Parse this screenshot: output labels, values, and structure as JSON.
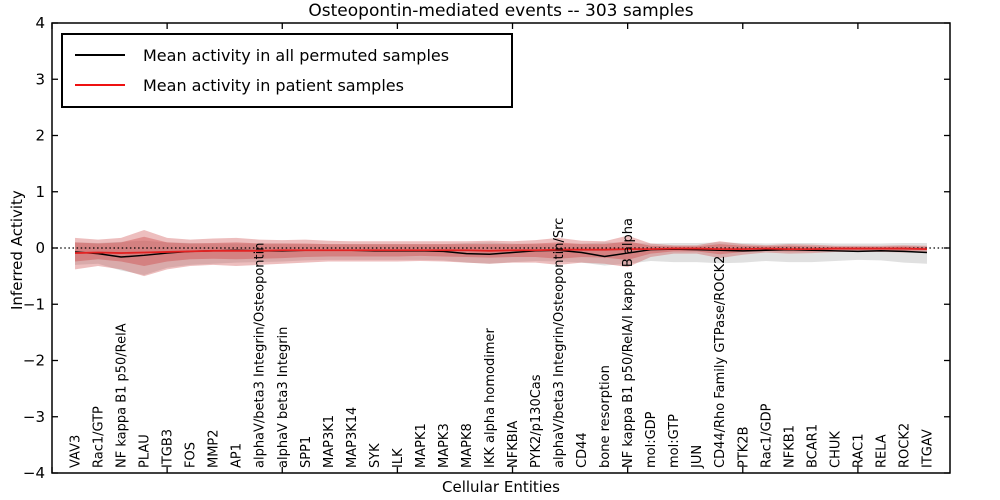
{
  "figure": {
    "title": "Osteopontin-mediated events -- 303 samples",
    "xlabel": "Cellular Entities",
    "ylabel": "Inferred Activity"
  },
  "legend": {
    "entries": [
      {
        "label": "Mean activity in all permuted samples",
        "color": "#000000"
      },
      {
        "label": "Mean activity in patient samples",
        "color": "#ee1111"
      }
    ]
  },
  "colors": {
    "permuted_line": "#000000",
    "patient_line": "#e22222",
    "patient_band": "#cc4444",
    "permuted_band": "#999999",
    "zero_line": "#000000",
    "axis": "#000000"
  },
  "chart_data": {
    "type": "line",
    "title": "Osteopontin-mediated events -- 303 samples",
    "xlabel": "Cellular Entities",
    "ylabel": "Inferred Activity",
    "ylim": [
      -4,
      4
    ],
    "xlim": [
      0,
      39
    ],
    "grid": false,
    "legend_position": "upper left",
    "yticks": [
      "−4",
      "−3",
      "−2",
      "−1",
      "0",
      "1",
      "2",
      "3",
      "4"
    ],
    "ytick_values": [
      -4,
      -3,
      -2,
      -1,
      0,
      1,
      2,
      3,
      4
    ],
    "xtick_values": [
      0,
      5,
      10,
      15,
      20,
      25,
      30,
      35
    ],
    "zero_line": {
      "style": "dotted",
      "value": 0
    },
    "categories": [
      "VAV3",
      "Rac1/GTP",
      "NF kappa B1 p50/RelA",
      "PLAU",
      "ITGB3",
      "FOS",
      "MMP2",
      "AP1",
      "alphaV/beta3 Integrin/Osteopontin",
      "alphaV beta3 Integrin",
      "SPP1",
      "MAP3K1",
      "MAP3K14",
      "SYK",
      "ILK",
      "MAPK1",
      "MAPK3",
      "MAPK8",
      "IKK alpha homodimer",
      "NFKBIA",
      "PYK2/p130Cas",
      "alphaV/beta3 Integrin/Osteopontin/Src",
      "CD44",
      "bone resorption",
      "NF kappa B1 p50/RelA/I kappa B alpha",
      "mol:GDP",
      "mol:GTP",
      "JUN",
      "CD44/Rho Family GTPase/ROCK2",
      "PTK2B",
      "Rac1/GDP",
      "NFKB1",
      "BCAR1",
      "CHUK",
      "RAC1",
      "RELA",
      "ROCK2",
      "ITGAV"
    ],
    "series": [
      {
        "name": "Mean activity in all permuted samples",
        "color": "#000000",
        "width": 1.5,
        "values": [
          -0.07,
          -0.1,
          -0.16,
          -0.13,
          -0.09,
          -0.06,
          -0.05,
          -0.04,
          -0.05,
          -0.05,
          -0.04,
          -0.04,
          -0.04,
          -0.05,
          -0.05,
          -0.05,
          -0.06,
          -0.1,
          -0.11,
          -0.08,
          -0.05,
          -0.04,
          -0.08,
          -0.15,
          -0.09,
          -0.03,
          -0.02,
          -0.03,
          -0.04,
          -0.05,
          -0.04,
          -0.03,
          -0.04,
          -0.05,
          -0.06,
          -0.05,
          -0.06,
          -0.08
        ]
      },
      {
        "name": "Mean activity in patient samples",
        "color": "#e22222",
        "width": 1.8,
        "values": [
          -0.09,
          -0.08,
          -0.09,
          -0.08,
          -0.07,
          -0.06,
          -0.05,
          -0.05,
          -0.05,
          -0.04,
          -0.04,
          -0.04,
          -0.04,
          -0.04,
          -0.04,
          -0.04,
          -0.04,
          -0.04,
          -0.05,
          -0.04,
          -0.04,
          -0.03,
          -0.03,
          -0.03,
          -0.02,
          -0.02,
          -0.01,
          -0.01,
          -0.02,
          -0.02,
          -0.01,
          -0.02,
          -0.02,
          -0.01,
          -0.01,
          -0.01,
          -0.01,
          -0.02
        ]
      }
    ],
    "bands": [
      {
        "name": "permuted-sample-range",
        "color": "#999999",
        "opacity": 0.3,
        "upper": [
          0.1,
          0.09,
          0.11,
          0.13,
          0.1,
          0.09,
          0.08,
          0.08,
          0.08,
          0.08,
          0.07,
          0.07,
          0.07,
          0.07,
          0.07,
          0.07,
          0.07,
          0.09,
          0.1,
          0.08,
          0.07,
          0.07,
          0.08,
          0.1,
          0.09,
          0.08,
          0.09,
          0.09,
          0.1,
          0.09,
          0.08,
          0.09,
          0.09,
          0.08,
          0.08,
          0.08,
          0.09,
          0.09
        ],
        "lower": [
          -0.3,
          -0.28,
          -0.4,
          -0.48,
          -0.35,
          -0.3,
          -0.28,
          -0.26,
          -0.25,
          -0.24,
          -0.22,
          -0.21,
          -0.21,
          -0.21,
          -0.21,
          -0.21,
          -0.22,
          -0.26,
          -0.28,
          -0.25,
          -0.23,
          -0.24,
          -0.26,
          -0.31,
          -0.28,
          -0.23,
          -0.25,
          -0.25,
          -0.27,
          -0.26,
          -0.23,
          -0.25,
          -0.25,
          -0.23,
          -0.21,
          -0.22,
          -0.26,
          -0.28
        ]
      },
      {
        "name": "patient-sample-range-outer",
        "color": "#cc4444",
        "opacity": 0.35,
        "upper": [
          0.18,
          0.15,
          0.18,
          0.32,
          0.18,
          0.15,
          0.17,
          0.18,
          0.15,
          0.14,
          0.15,
          0.13,
          0.12,
          0.12,
          0.12,
          0.12,
          0.12,
          0.12,
          0.13,
          0.12,
          0.14,
          0.18,
          0.13,
          0.12,
          0.22,
          0.08,
          0.05,
          0.05,
          0.12,
          0.07,
          0.05,
          0.07,
          0.06,
          0.04,
          0.04,
          0.04,
          0.05,
          0.04
        ],
        "lower": [
          -0.38,
          -0.32,
          -0.38,
          -0.5,
          -0.38,
          -0.32,
          -0.3,
          -0.32,
          -0.3,
          -0.28,
          -0.26,
          -0.24,
          -0.24,
          -0.24,
          -0.24,
          -0.23,
          -0.24,
          -0.26,
          -0.28,
          -0.26,
          -0.26,
          -0.3,
          -0.26,
          -0.28,
          -0.34,
          -0.16,
          -0.1,
          -0.1,
          -0.18,
          -0.12,
          -0.08,
          -0.1,
          -0.09,
          -0.07,
          -0.07,
          -0.07,
          -0.08,
          -0.07
        ]
      },
      {
        "name": "patient-sample-range-inner",
        "color": "#cc4444",
        "opacity": 0.4,
        "upper": [
          0.1,
          0.08,
          0.1,
          0.2,
          0.1,
          0.08,
          0.09,
          0.1,
          0.08,
          0.08,
          0.08,
          0.07,
          0.07,
          0.07,
          0.07,
          0.07,
          0.07,
          0.07,
          0.07,
          0.07,
          0.08,
          0.1,
          0.07,
          0.07,
          0.12,
          0.04,
          0.03,
          0.03,
          0.07,
          0.04,
          0.03,
          0.04,
          0.03,
          0.02,
          0.02,
          0.02,
          0.03,
          0.02
        ],
        "lower": [
          -0.24,
          -0.2,
          -0.24,
          -0.32,
          -0.24,
          -0.2,
          -0.19,
          -0.2,
          -0.19,
          -0.18,
          -0.16,
          -0.15,
          -0.15,
          -0.15,
          -0.15,
          -0.14,
          -0.15,
          -0.16,
          -0.17,
          -0.16,
          -0.16,
          -0.19,
          -0.16,
          -0.17,
          -0.21,
          -0.1,
          -0.06,
          -0.06,
          -0.11,
          -0.07,
          -0.05,
          -0.06,
          -0.06,
          -0.04,
          -0.04,
          -0.04,
          -0.05,
          -0.04
        ]
      }
    ]
  }
}
